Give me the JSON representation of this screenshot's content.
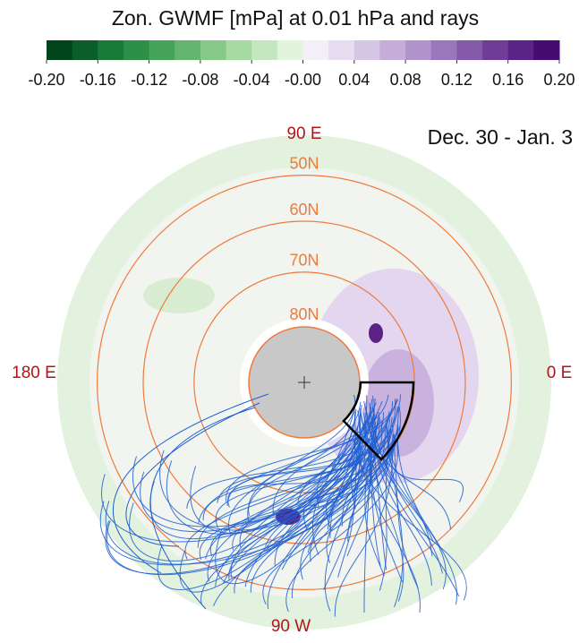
{
  "chart_data": {
    "type": "polar-map",
    "title": "Zon. GWMF [mPa] at 0.01 hPa and rays",
    "date_label": "Dec. 30 - Jan. 3",
    "colorbar": {
      "clim": [
        -0.2,
        0.2
      ],
      "colors": [
        "#00441b",
        "#0b5e2a",
        "#1a7a38",
        "#2e8f48",
        "#46a35a",
        "#64b56f",
        "#85c887",
        "#a7d9a3",
        "#c5e7c0",
        "#e2f3de",
        "#f3eef7",
        "#e6dcef",
        "#d6c6e5",
        "#c4add9",
        "#b093cb",
        "#9a77bb",
        "#8459aa",
        "#6f3c98",
        "#5a2385",
        "#460b71"
      ],
      "ticks": [
        {
          "value": -0.2,
          "label": "-0.20"
        },
        {
          "value": -0.16,
          "label": "-0.16"
        },
        {
          "value": -0.12,
          "label": "-0.12"
        },
        {
          "value": -0.08,
          "label": "-0.08"
        },
        {
          "value": -0.04,
          "label": "-0.04"
        },
        {
          "value": 0,
          "label": "-0.00"
        },
        {
          "value": 0.04,
          "label": "0.04"
        },
        {
          "value": 0.08,
          "label": "0.08"
        },
        {
          "value": 0.12,
          "label": "0.12"
        },
        {
          "value": 0.16,
          "label": "0.16"
        },
        {
          "value": 0.2,
          "label": "0.20"
        }
      ]
    },
    "longitude_labels": {
      "top": "90 E",
      "left": "180 E",
      "right": "0 E",
      "bottom": "90 W"
    },
    "latitude_circles": [
      {
        "value": 50,
        "label": "50N"
      },
      {
        "value": 60,
        "label": "60N"
      },
      {
        "value": 70,
        "label": "70N"
      },
      {
        "value": 80,
        "label": "80N"
      }
    ],
    "circle_color": "#f07a3a",
    "ray_color": "#1f5fd0"
  }
}
